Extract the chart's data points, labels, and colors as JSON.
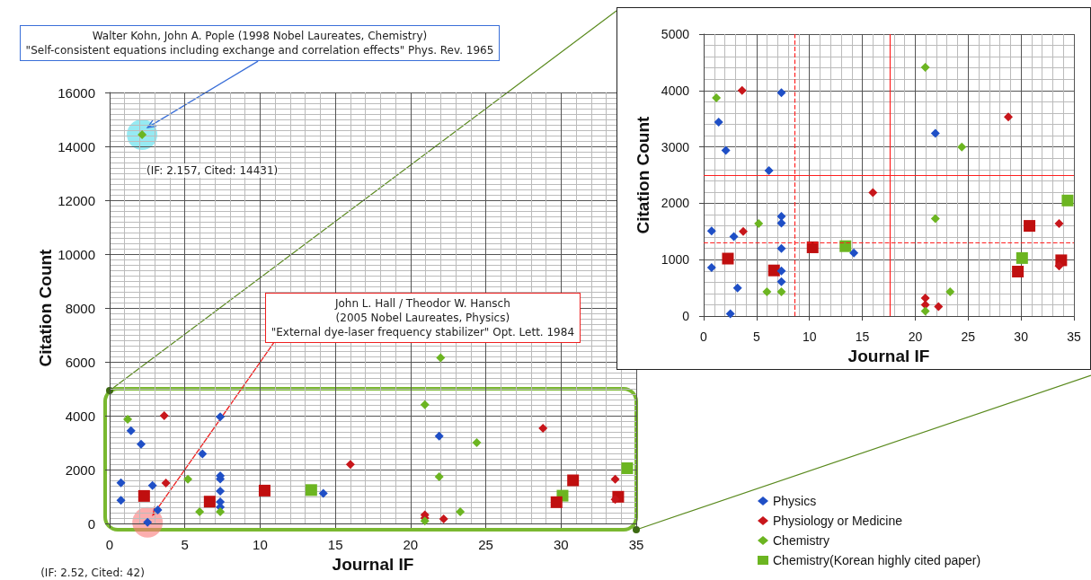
{
  "chart_data": [
    {
      "type": "scatter",
      "xlabel": "Journal IF",
      "ylabel": "Citation Count",
      "xlim": [
        0,
        35
      ],
      "xticks": [
        0,
        5,
        10,
        15,
        20,
        25,
        30,
        35
      ],
      "ylim": [
        0,
        16000
      ],
      "yticks": [
        0,
        2000,
        4000,
        6000,
        8000,
        10000,
        12000,
        14000,
        16000
      ],
      "grid": true,
      "legend": "bottom right",
      "series": [
        {
          "name": "Physics",
          "color": "#1f4fc6",
          "marker": "diamond",
          "x": [
            0.75,
            0.75,
            1.42,
            2.09,
            2.85,
            3.2,
            2.52,
            6.17,
            7.35,
            7.35,
            7.35,
            7.35,
            7.35,
            7.35,
            14.2,
            21.9
          ],
          "values": [
            1510,
            860,
            3440,
            2940,
            1410,
            500,
            42,
            2580,
            3960,
            1770,
            1650,
            1200,
            800,
            610,
            1120,
            3240
          ]
        },
        {
          "name": "Physiology or Medicine",
          "color": "#c8161b",
          "marker": "diamond",
          "x": [
            3.63,
            3.74,
            16.0,
            28.8,
            33.6,
            33.6,
            20.95,
            20.95,
            22.2
          ],
          "values": [
            4000,
            1500,
            2190,
            3530,
            1640,
            890,
            320,
            200,
            170
          ]
        },
        {
          "name": "Chemistry",
          "color": "#6cb521",
          "marker": "diamond",
          "x": [
            2.157,
            22.0,
            1.2,
            5.2,
            5.98,
            7.35,
            20.95,
            24.4,
            21.9,
            23.3,
            20.95
          ],
          "values": [
            14431,
            6150,
            3870,
            1640,
            430,
            430,
            4410,
            3000,
            1730,
            430,
            90
          ]
        },
        {
          "name": "Chemistry(Korean highly cited paper)",
          "color": "#6cb521",
          "marker": "square",
          "x": [
            13.4,
            30.1,
            34.4
          ],
          "values": [
            1240,
            1030,
            2050
          ]
        },
        {
          "color": "#c00f0f",
          "marker": "square",
          "x": [
            2.29,
            6.65,
            10.3,
            30.8,
            29.7,
            33.8
          ],
          "values": [
            1020,
            810,
            1220,
            1600,
            790,
            990
          ]
        }
      ],
      "annotations": [
        "Walter Kohn, John A. Pople (1998 Nobel Laureates, Chemistry)\n\"Self-consistent equations including exchange and correlation effects\" Phys. Rev. 1965",
        "(IF: 2.157,  Cited:  14431)",
        "John L. Hall / Theodor W. Hansch\n(2005 Nobel Laureates, Physics)\n\"External dye-laser frequency stabilizer\" Opt. Lett. 1984",
        "(IF: 2.52,  Cited:  42)"
      ]
    },
    {
      "type": "scatter",
      "xlabel": "Journal IF",
      "ylabel": "Citation Count",
      "xlim": [
        0,
        35
      ],
      "xticks": [
        0,
        5,
        10,
        15,
        20,
        25,
        30,
        35
      ],
      "ylim": [
        0,
        5000
      ],
      "yticks": [
        0,
        1000,
        2000,
        3000,
        4000,
        5000
      ],
      "grid": true,
      "series": [
        {
          "color": "#1f4fc6",
          "marker": "diamond",
          "x": [
            0.75,
            0.75,
            1.42,
            2.09,
            2.85,
            3.2,
            2.52,
            6.17,
            7.35,
            7.35,
            7.35,
            7.35,
            7.35,
            7.35,
            14.2,
            21.9
          ],
          "values": [
            1510,
            860,
            3440,
            2940,
            1410,
            500,
            42,
            2580,
            3960,
            1770,
            1650,
            1200,
            800,
            610,
            1120,
            3240
          ]
        },
        {
          "color": "#c8161b",
          "marker": "diamond",
          "x": [
            3.63,
            3.74,
            16.0,
            28.8,
            33.6,
            33.6,
            20.95,
            20.95,
            22.2
          ],
          "values": [
            4000,
            1500,
            2190,
            3530,
            1640,
            890,
            320,
            200,
            170
          ]
        },
        {
          "color": "#6cb521",
          "marker": "diamond",
          "x": [
            1.2,
            5.2,
            5.98,
            7.35,
            20.95,
            24.4,
            21.9,
            23.3,
            20.95
          ],
          "values": [
            3870,
            1640,
            430,
            430,
            4410,
            3000,
            1730,
            430,
            90
          ]
        },
        {
          "color": "#6cb521",
          "marker": "square",
          "x": [
            13.4,
            30.1,
            34.4
          ],
          "values": [
            1240,
            1030,
            2050
          ]
        },
        {
          "color": "#c00f0f",
          "marker": "square",
          "x": [
            2.29,
            6.65,
            10.3,
            30.8,
            29.7,
            33.8
          ],
          "values": [
            1020,
            810,
            1220,
            1600,
            790,
            990
          ]
        }
      ],
      "ref_lines": [
        {
          "axis": "y",
          "value": 2500,
          "color": "#ff2020",
          "line_style": "solid"
        },
        {
          "axis": "x",
          "value": 17.6,
          "color": "#ff2020",
          "line_style": "solid"
        },
        {
          "axis": "y",
          "value": 1300,
          "color": "#ff2020",
          "line_style": "dashed"
        },
        {
          "axis": "x",
          "value": 8.6,
          "color": "#ff2020",
          "line_style": "dashed"
        }
      ]
    }
  ]
}
